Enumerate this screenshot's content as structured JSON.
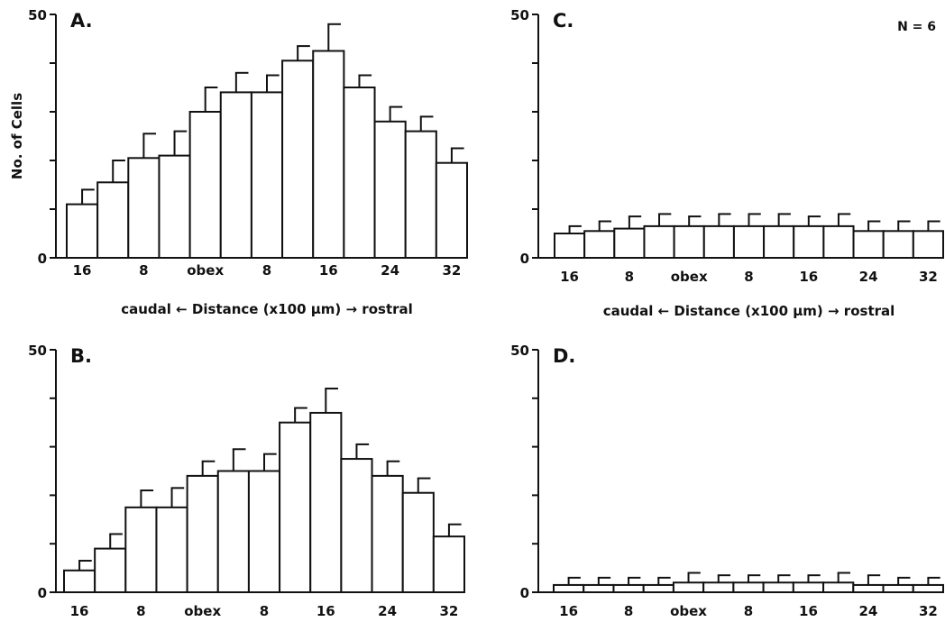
{
  "ylabel": "No. of Cells",
  "n_label": "N = 6",
  "xlabel": {
    "left": "caudal",
    "center": "Distance (x100 μm)",
    "right": "rostral"
  },
  "chart_data": [
    {
      "type": "bar",
      "panel": "A.",
      "ylim": [
        0,
        50
      ],
      "yticks": [
        "0",
        "50"
      ],
      "xtick_labels": [
        "16",
        "8",
        "obex",
        "8",
        "16",
        "24",
        "32"
      ],
      "values": [
        11,
        15.5,
        20.5,
        21,
        30,
        34,
        34,
        40.5,
        42.5,
        35,
        28,
        26,
        19.5
      ],
      "errors": [
        3,
        4.5,
        5,
        5,
        5,
        4,
        3.5,
        3,
        5.5,
        2.5,
        3,
        3,
        3
      ]
    },
    {
      "type": "bar",
      "panel": "B.",
      "ylim": [
        0,
        50
      ],
      "yticks": [
        "0",
        "50"
      ],
      "xtick_labels": [
        "16",
        "8",
        "obex",
        "8",
        "16",
        "24",
        "32"
      ],
      "values": [
        4.5,
        9,
        17.5,
        17.5,
        24,
        25,
        25,
        35,
        37,
        27.5,
        24,
        20.5,
        11.5
      ],
      "errors": [
        2,
        3,
        3.5,
        4,
        3,
        4.5,
        3.5,
        3,
        5,
        3,
        3,
        3,
        2.5
      ]
    },
    {
      "type": "bar",
      "panel": "C.",
      "ylim": [
        0,
        50
      ],
      "yticks": [
        "0",
        "50"
      ],
      "xtick_labels": [
        "16",
        "8",
        "obex",
        "8",
        "16",
        "24",
        "32"
      ],
      "values": [
        5,
        5.5,
        6,
        6.5,
        6.5,
        6.5,
        6.5,
        6.5,
        6.5,
        6.5,
        5.5,
        5.5,
        5.5
      ],
      "errors": [
        1.5,
        2,
        2.5,
        2.5,
        2,
        2.5,
        2.5,
        2.5,
        2,
        2.5,
        2,
        2,
        2
      ]
    },
    {
      "type": "bar",
      "panel": "D.",
      "ylim": [
        0,
        50
      ],
      "yticks": [
        "0",
        "50"
      ],
      "xtick_labels": [
        "16",
        "8",
        "obex",
        "8",
        "16",
        "24",
        "32"
      ],
      "values": [
        1.5,
        1.5,
        1.5,
        1.5,
        2,
        2,
        2,
        2,
        2,
        2,
        1.5,
        1.5,
        1.5
      ],
      "errors": [
        1.5,
        1.5,
        1.5,
        1.5,
        2,
        1.5,
        1.5,
        1.5,
        1.5,
        2,
        2,
        1.5,
        1.5
      ]
    }
  ]
}
